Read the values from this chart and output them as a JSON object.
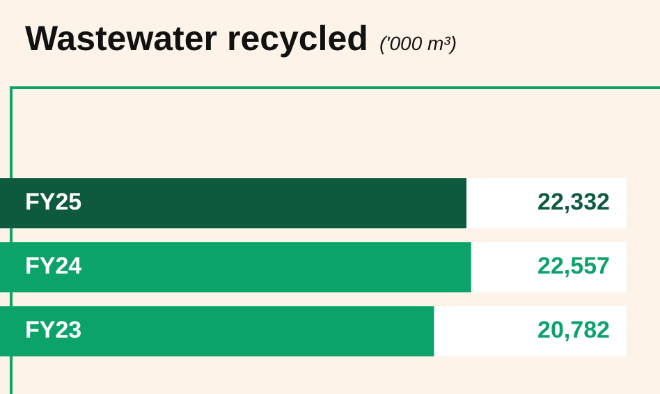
{
  "chart_data": {
    "type": "bar",
    "orientation": "horizontal",
    "title": "Wastewater recycled",
    "subtitle": "('000 m³)",
    "categories": [
      "FY25",
      "FY24",
      "FY23"
    ],
    "values": [
      22332,
      22557,
      20782
    ],
    "value_labels": [
      "22,332",
      "22,557",
      "20,782"
    ],
    "colors": [
      "#0d5a3e",
      "#0ba36a",
      "#0ba36a"
    ],
    "legend": false
  }
}
